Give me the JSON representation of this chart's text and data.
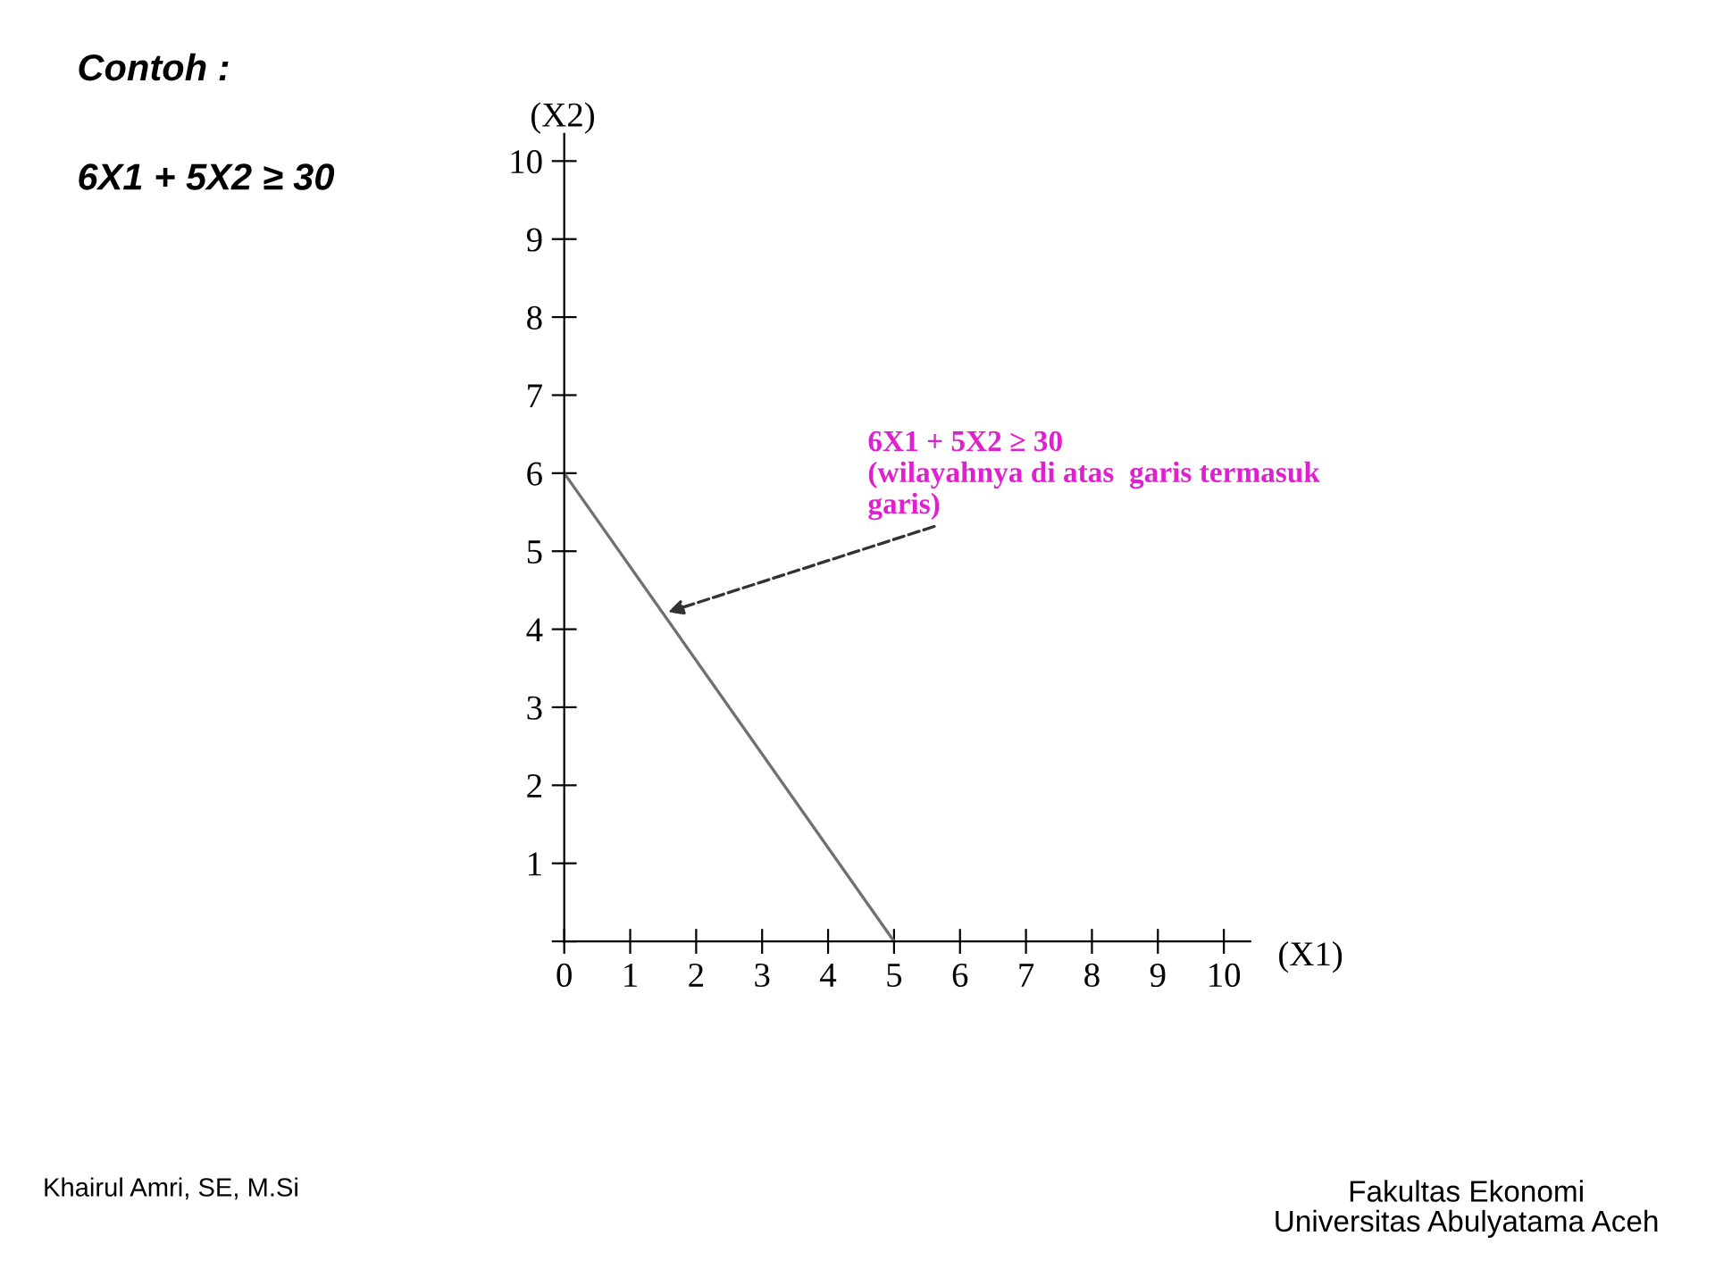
{
  "chart_data": {
    "type": "line",
    "title": "Contoh :",
    "subtitle": "6X1 + 5X2 ≥ 30",
    "xlabel": "(X1)",
    "ylabel": "(X2)",
    "series": [
      {
        "x": [
          0,
          5
        ],
        "values": [
          6,
          0
        ],
        "color": "#707070"
      }
    ],
    "xlim": [
      0,
      10.4
    ],
    "ylim": [
      0,
      10.35
    ],
    "xticks": [
      0,
      1,
      2,
      3,
      4,
      5,
      6,
      7,
      8,
      9,
      10
    ],
    "yticks": [
      {
        "value": 0,
        "label": null
      },
      1,
      2,
      3,
      4,
      5,
      6,
      7,
      8,
      9,
      10
    ],
    "grid": false,
    "legend": false,
    "marker": "none",
    "line_style": "solid",
    "annotations": [
      {
        "text": "6X1 + 5X2 ≥ 30\n(wilayahnya di atas  garis termasuk\ngaris)",
        "x": 1.5,
        "y": 4.2
      },
      "Khairul Amri, SE, M.Si",
      "Fakultas Ekonomi\nUniversitas Abulyatama Aceh"
    ]
  }
}
